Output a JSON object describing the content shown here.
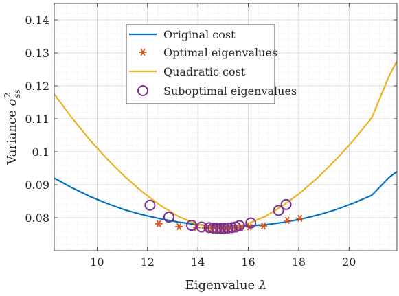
{
  "chart_data": {
    "type": "line",
    "xlabel_text": "Eigenvalue ",
    "xlabel_symbol": "λ",
    "ylabel_text": "Variance ",
    "ylabel_symbol": "σ",
    "ylabel_sup": "2",
    "ylabel_sub": "ss",
    "xlim": [
      8.3,
      21.9
    ],
    "ylim": [
      0.07,
      0.145
    ],
    "xticks": [
      10,
      12,
      14,
      16,
      18,
      20
    ],
    "yticks": [
      0.08,
      0.09,
      0.1,
      0.11,
      0.12,
      0.13,
      0.14
    ],
    "ytick_labels": [
      "0.08",
      "0.09",
      "0.1",
      "0.11",
      "0.12",
      "0.13",
      "0.14"
    ],
    "grid": true,
    "minor_grid": true,
    "legend_position": "top-center",
    "series": [
      {
        "name": "Original cost",
        "kind": "line",
        "color": "#0072BD",
        "x": [
          8.3,
          9.0,
          9.7,
          10.4,
          11.1,
          11.8,
          12.5,
          13.2,
          13.9,
          14.6,
          15.3,
          16.0,
          16.7,
          17.4,
          18.1,
          18.8,
          19.5,
          20.2,
          20.9,
          21.6,
          21.9
        ],
        "y": [
          0.092,
          0.0891,
          0.0865,
          0.0843,
          0.0824,
          0.0809,
          0.0797,
          0.0787,
          0.078,
          0.0775,
          0.0774,
          0.0775,
          0.0779,
          0.0786,
          0.0796,
          0.0809,
          0.0825,
          0.0845,
          0.0868,
          0.0923,
          0.094
        ]
      },
      {
        "name": "Optimal eigenvalues",
        "kind": "scatter",
        "marker": "asterisk",
        "color": "#D95319",
        "x": [
          12.45,
          13.25,
          13.95,
          14.3,
          14.55,
          14.75,
          14.95,
          15.1,
          15.3,
          15.5,
          15.7,
          16.05,
          16.6,
          17.55,
          18.05
        ],
        "y": [
          0.0782,
          0.0773,
          0.077,
          0.0769,
          0.0768,
          0.0768,
          0.0768,
          0.0768,
          0.0768,
          0.0769,
          0.077,
          0.0772,
          0.0775,
          0.0792,
          0.0798
        ]
      },
      {
        "name": "Quadratic cost",
        "kind": "line",
        "color": "#EDB120",
        "x": [
          8.3,
          9.0,
          9.7,
          10.4,
          11.1,
          11.8,
          12.5,
          13.2,
          13.9,
          14.6,
          15.3,
          16.0,
          16.7,
          17.4,
          18.1,
          18.8,
          19.5,
          20.2,
          20.9,
          21.6,
          21.9
        ],
        "y": [
          0.1175,
          0.1103,
          0.1037,
          0.0978,
          0.0925,
          0.0878,
          0.0838,
          0.0805,
          0.0782,
          0.077,
          0.077,
          0.0782,
          0.0805,
          0.0838,
          0.0878,
          0.0925,
          0.0978,
          0.1037,
          0.1103,
          0.1232,
          0.1275
        ]
      },
      {
        "name": "Suboptimal eigenvalues",
        "kind": "scatter",
        "marker": "circle",
        "color": "#7E2F8E",
        "x": [
          12.1,
          12.85,
          13.75,
          14.15,
          14.45,
          14.6,
          14.75,
          14.9,
          15.05,
          15.2,
          15.35,
          15.5,
          15.65,
          16.1,
          17.2,
          17.5
        ],
        "y": [
          0.0838,
          0.0802,
          0.0777,
          0.0772,
          0.077,
          0.0769,
          0.0768,
          0.0768,
          0.0768,
          0.0769,
          0.077,
          0.0772,
          0.0776,
          0.0784,
          0.0822,
          0.084
        ]
      }
    ]
  }
}
